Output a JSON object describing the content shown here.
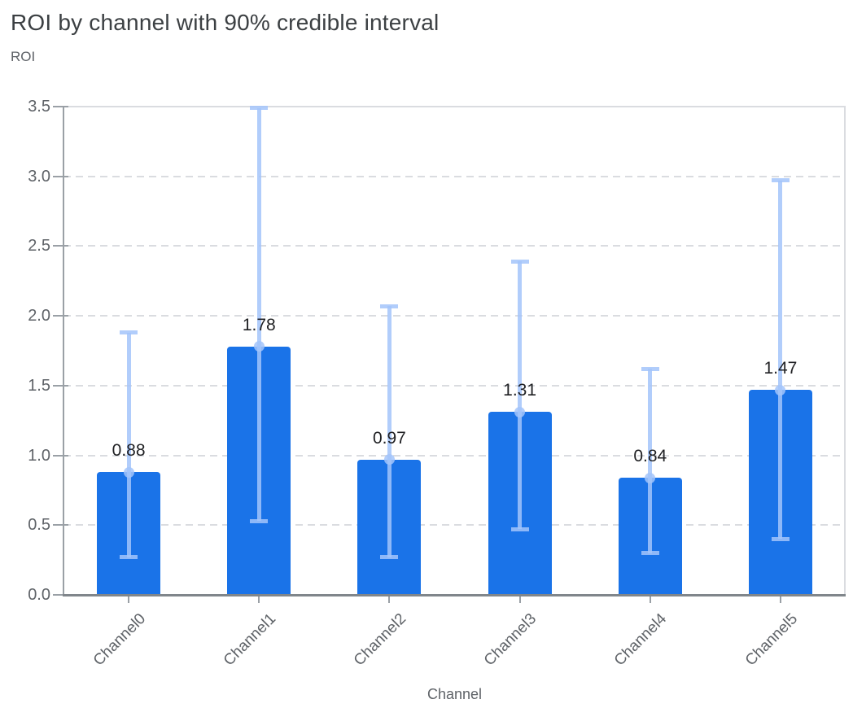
{
  "chart_data": {
    "type": "bar",
    "title": "ROI by channel with 90% credible interval",
    "y_axis_title": "ROI",
    "x_axis_title": "Channel",
    "xlabel": "Channel",
    "ylabel": "ROI",
    "categories": [
      "Channel0",
      "Channel1",
      "Channel2",
      "Channel3",
      "Channel4",
      "Channel5"
    ],
    "series": [
      {
        "name": "ROI",
        "values": [
          0.88,
          1.78,
          0.97,
          1.31,
          0.84,
          1.47
        ]
      }
    ],
    "data_labels": [
      "0.88",
      "1.78",
      "0.97",
      "1.31",
      "0.84",
      "1.47"
    ],
    "error_bars": {
      "label": "90% credible interval",
      "upper": [
        1.88,
        3.49,
        2.07,
        2.39,
        1.62,
        2.97
      ],
      "lower": [
        0.27,
        0.53,
        0.27,
        0.47,
        0.3,
        0.4
      ]
    },
    "y_ticks": [
      "0.0",
      "0.5",
      "1.0",
      "1.5",
      "2.0",
      "2.5",
      "3.0",
      "3.5"
    ],
    "ylim": [
      0,
      3.5
    ],
    "grid": "horizontal-dashed",
    "legend": "none",
    "colors": {
      "bar": "#1a73e8",
      "error_bar": "#a3c4fa",
      "grid": "#dadce0",
      "axis": "#9aa0a6",
      "baseline": "#80868b",
      "title_text": "#3c4043",
      "axis_text": "#5f6368",
      "data_label_text": "#202124"
    }
  }
}
